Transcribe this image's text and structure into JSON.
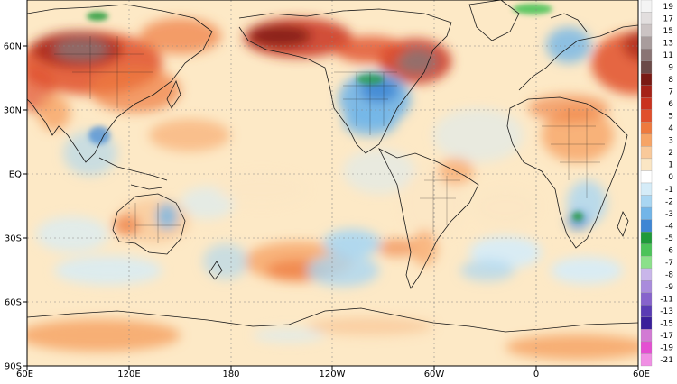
{
  "map": {
    "lat_labels": [
      "60N",
      "30N",
      "EQ",
      "30S",
      "60S",
      "90S"
    ],
    "lon_labels": [
      "60E",
      "120E",
      "180",
      "120W",
      "60W",
      "0",
      "60E"
    ],
    "legend": {
      "values": [
        "19",
        "17",
        "15",
        "13",
        "11",
        "9",
        "8",
        "7",
        "6",
        "5",
        "4",
        "3",
        "2",
        "1",
        "0",
        "-1",
        "-2",
        "-3",
        "-4",
        "-5",
        "-6",
        "-7",
        "-8",
        "-9",
        "-11",
        "-13",
        "-15",
        "-17",
        "-19",
        "-21"
      ],
      "colors": [
        "#f4f4f4",
        "#e2dede",
        "#cbc3c3",
        "#a89c9c",
        "#8a7474",
        "#6b4a48",
        "#7a1a14",
        "#a52218",
        "#c9321f",
        "#e0502c",
        "#ee7a3e",
        "#f6a466",
        "#f9c99a",
        "#fbe6c4",
        "#ffffff",
        "#d5ecf8",
        "#a9d6f2",
        "#72b5e8",
        "#3f86d4",
        "#1f9a3a",
        "#4cc35a",
        "#8be08a",
        "#c9b6ea",
        "#a98bdc",
        "#8763cc",
        "#5a3cb4",
        "#3a1f9a",
        "#d27ad4",
        "#e44fd2",
        "#f08fe4"
      ]
    },
    "colors": {
      "ocean_base": "#fde9c6",
      "coast": "#1a1a1a"
    }
  }
}
